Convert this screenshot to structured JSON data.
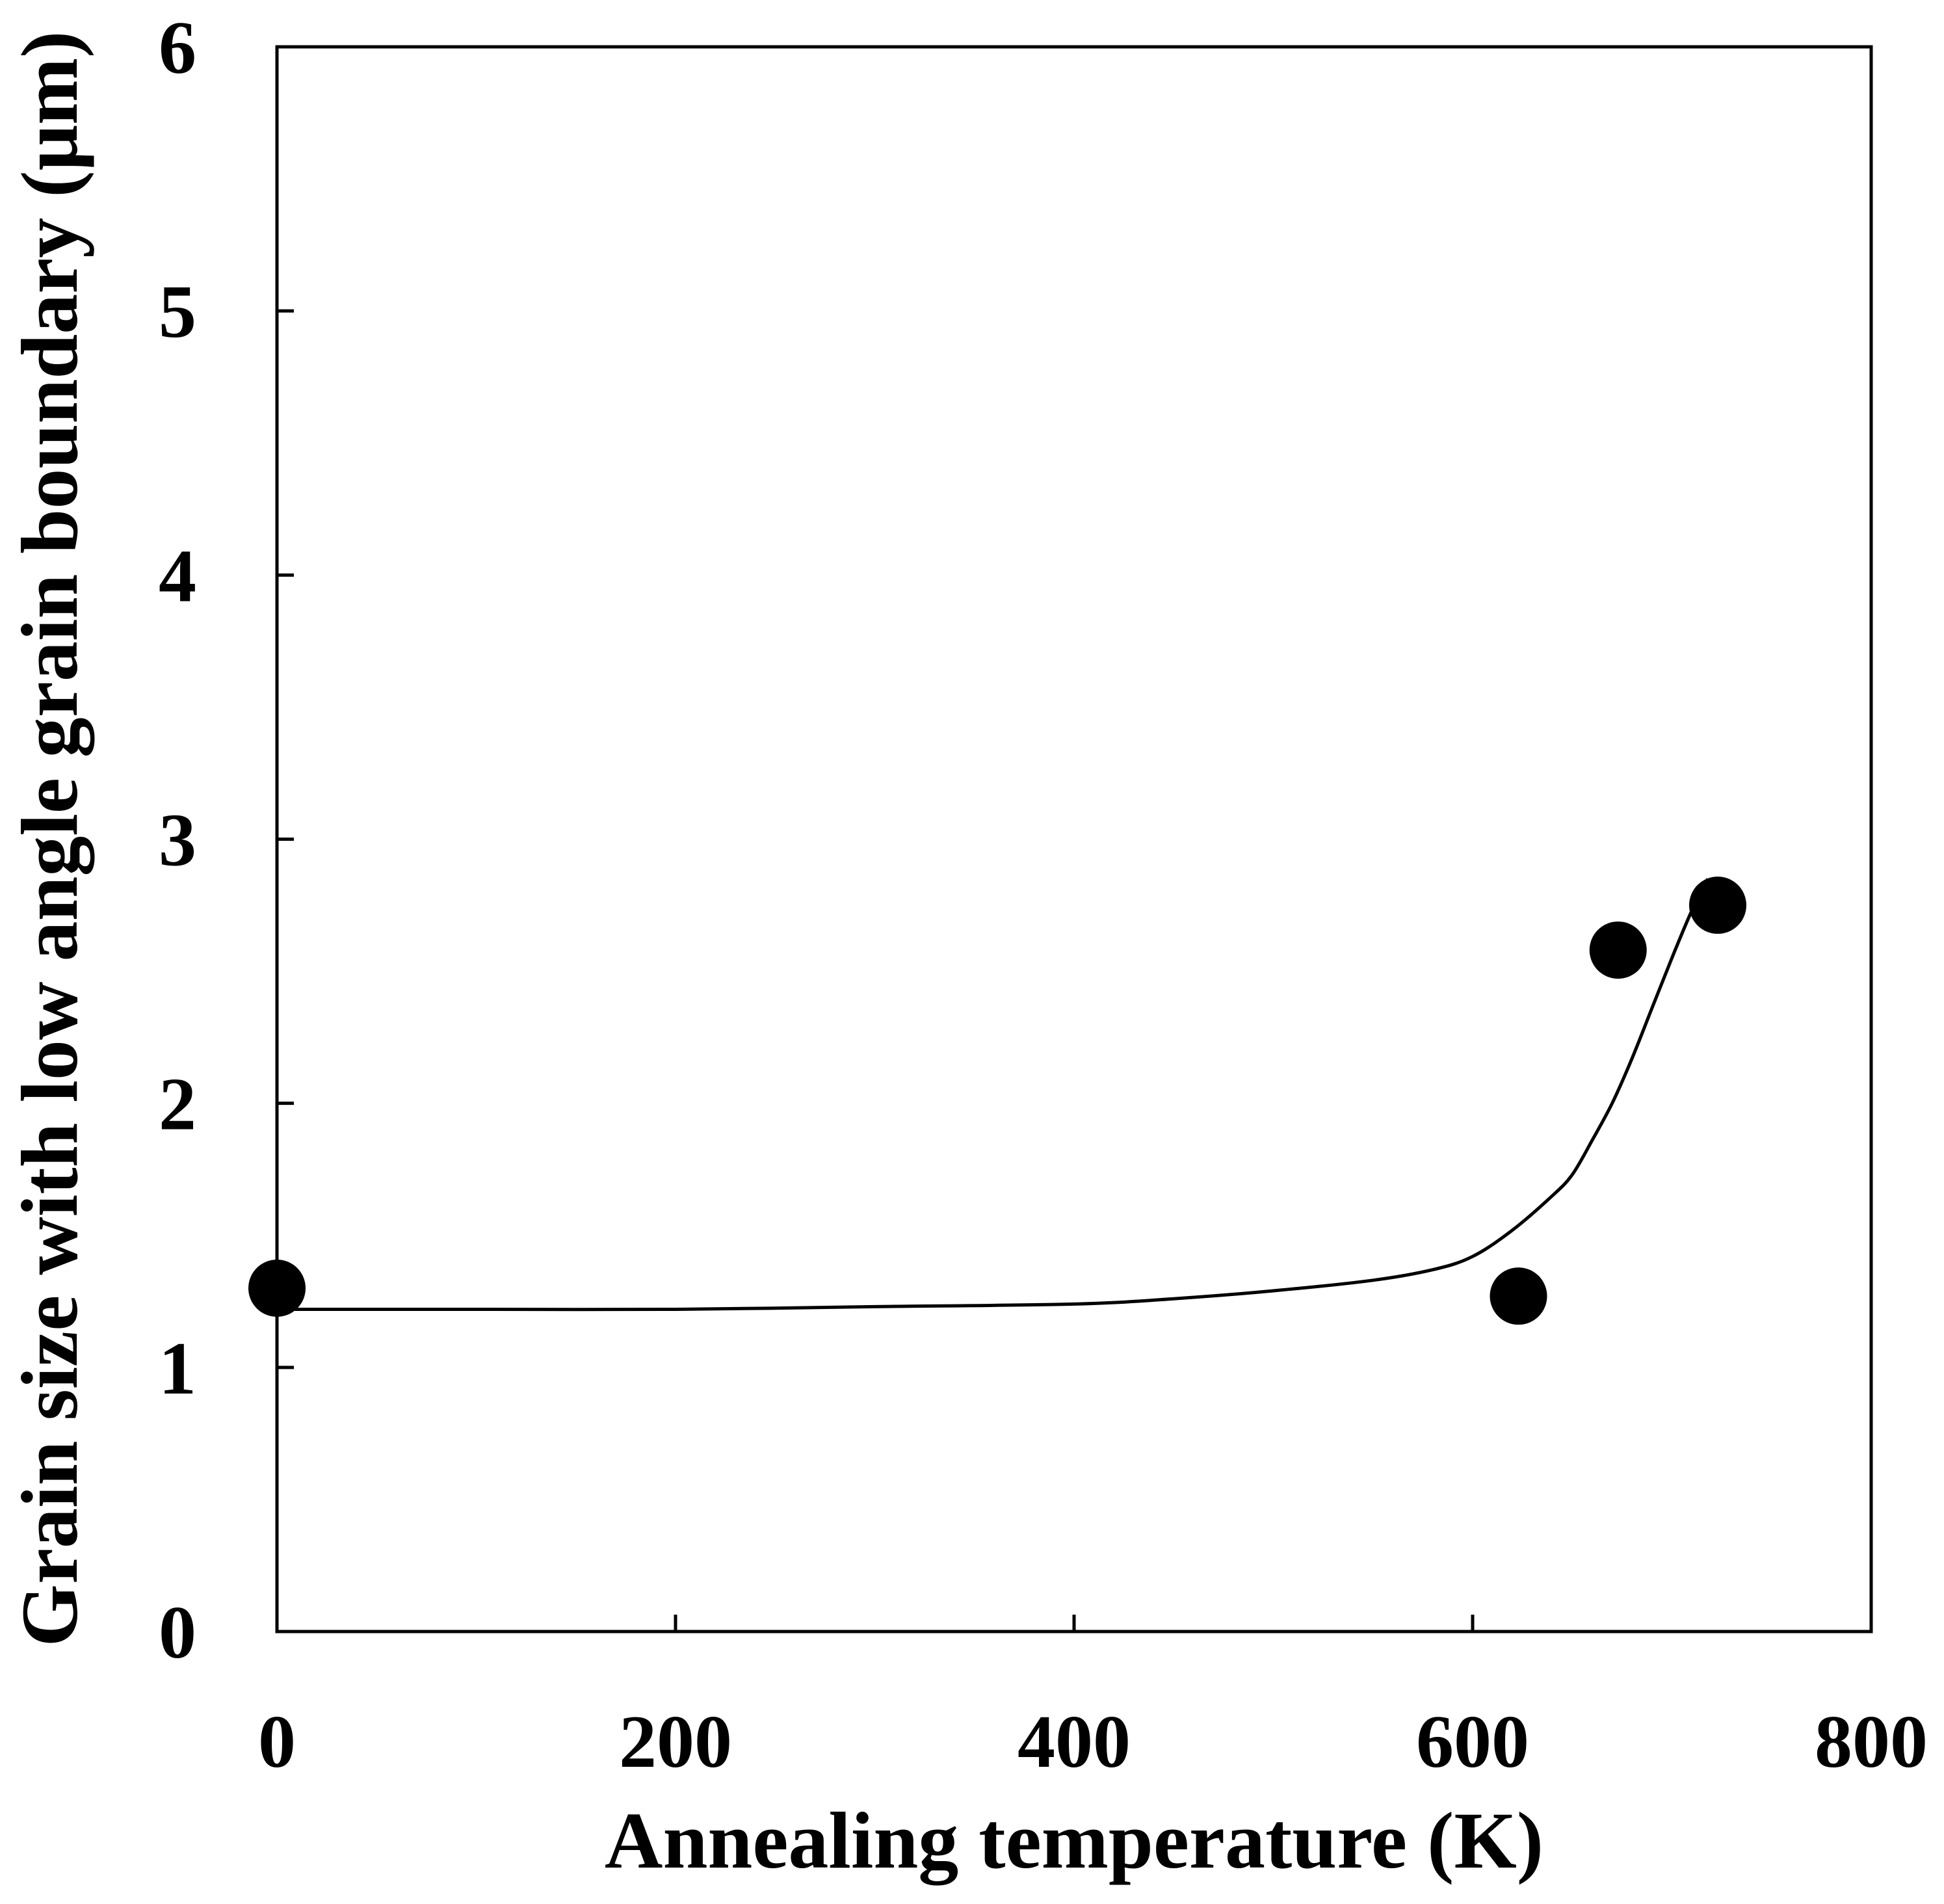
{
  "chart_data": {
    "type": "scatter",
    "title": "",
    "xlabel": "Annealing temperature (K)",
    "ylabel": "Grain size with low angle grain boundary (μm)",
    "xlim": [
      0,
      800
    ],
    "ylim": [
      0,
      6
    ],
    "x_ticks": [
      0,
      200,
      400,
      600,
      800
    ],
    "x_tick_labels": [
      "0",
      "200",
      "400",
      "600",
      "800"
    ],
    "y_ticks": [
      0,
      1,
      2,
      3,
      4,
      5,
      6
    ],
    "y_tick_labels": [
      "0",
      "1",
      "2",
      "3",
      "4",
      "5",
      "6"
    ],
    "grid": false,
    "legend": "none",
    "series": [
      {
        "name": "measured",
        "kind": "markers",
        "x": [
          0,
          623,
          673,
          723
        ],
        "y": [
          1.3,
          1.27,
          2.58,
          2.75
        ]
      },
      {
        "name": "fit",
        "kind": "line",
        "x": [
          0,
          100,
          200,
          300,
          400,
          450,
          500,
          550,
          580,
          600,
          620,
          640,
          650,
          660,
          670,
          680,
          690,
          700,
          710,
          718
        ],
        "y": [
          1.22,
          1.22,
          1.22,
          1.23,
          1.24,
          1.26,
          1.29,
          1.33,
          1.37,
          1.42,
          1.52,
          1.65,
          1.73,
          1.86,
          2.0,
          2.17,
          2.36,
          2.55,
          2.73,
          2.85
        ]
      }
    ],
    "colors": {
      "marker": "#000000",
      "line": "#000000",
      "axis": "#000000",
      "background": "#ffffff"
    }
  }
}
